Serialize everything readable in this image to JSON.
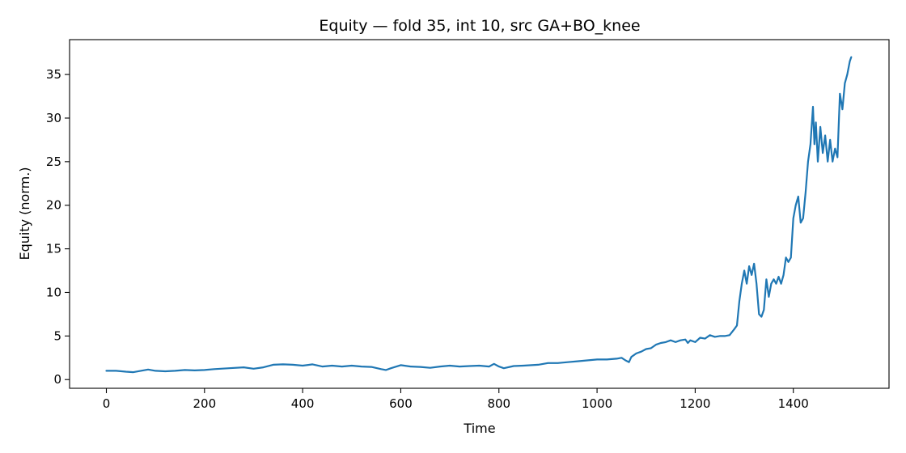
{
  "chart_data": {
    "type": "line",
    "title": "Equity — fold 35, int 10, src GA+BO_knee",
    "xlabel": "Time",
    "ylabel": "Equity (norm.)",
    "xlim": [
      -75,
      1595
    ],
    "ylim": [
      -1.0,
      39.0
    ],
    "xticks": [
      0,
      200,
      400,
      600,
      800,
      1000,
      1200,
      1400
    ],
    "yticks": [
      0,
      5,
      10,
      15,
      20,
      25,
      30,
      35
    ],
    "grid": false,
    "legend": "none",
    "series": [
      {
        "color": "#1f77b4",
        "points": [
          [
            0,
            1.0
          ],
          [
            20,
            1.0
          ],
          [
            40,
            0.9
          ],
          [
            55,
            0.85
          ],
          [
            70,
            1.0
          ],
          [
            85,
            1.15
          ],
          [
            100,
            1.0
          ],
          [
            120,
            0.95
          ],
          [
            140,
            1.0
          ],
          [
            160,
            1.1
          ],
          [
            180,
            1.05
          ],
          [
            200,
            1.1
          ],
          [
            220,
            1.2
          ],
          [
            250,
            1.3
          ],
          [
            280,
            1.4
          ],
          [
            300,
            1.25
          ],
          [
            320,
            1.4
          ],
          [
            340,
            1.7
          ],
          [
            360,
            1.75
          ],
          [
            380,
            1.7
          ],
          [
            400,
            1.6
          ],
          [
            420,
            1.75
          ],
          [
            440,
            1.5
          ],
          [
            460,
            1.6
          ],
          [
            480,
            1.5
          ],
          [
            500,
            1.6
          ],
          [
            520,
            1.5
          ],
          [
            540,
            1.45
          ],
          [
            560,
            1.2
          ],
          [
            570,
            1.1
          ],
          [
            580,
            1.3
          ],
          [
            600,
            1.65
          ],
          [
            620,
            1.5
          ],
          [
            640,
            1.45
          ],
          [
            660,
            1.35
          ],
          [
            680,
            1.5
          ],
          [
            700,
            1.6
          ],
          [
            720,
            1.5
          ],
          [
            740,
            1.55
          ],
          [
            760,
            1.6
          ],
          [
            780,
            1.5
          ],
          [
            790,
            1.8
          ],
          [
            800,
            1.5
          ],
          [
            810,
            1.3
          ],
          [
            830,
            1.55
          ],
          [
            850,
            1.6
          ],
          [
            880,
            1.7
          ],
          [
            900,
            1.9
          ],
          [
            920,
            1.9
          ],
          [
            940,
            2.0
          ],
          [
            960,
            2.1
          ],
          [
            980,
            2.2
          ],
          [
            1000,
            2.3
          ],
          [
            1020,
            2.3
          ],
          [
            1040,
            2.4
          ],
          [
            1050,
            2.5
          ],
          [
            1058,
            2.2
          ],
          [
            1065,
            2.0
          ],
          [
            1070,
            2.6
          ],
          [
            1080,
            3.0
          ],
          [
            1090,
            3.2
          ],
          [
            1100,
            3.5
          ],
          [
            1110,
            3.6
          ],
          [
            1120,
            4.0
          ],
          [
            1130,
            4.2
          ],
          [
            1140,
            4.3
          ],
          [
            1150,
            4.5
          ],
          [
            1160,
            4.3
          ],
          [
            1170,
            4.5
          ],
          [
            1180,
            4.6
          ],
          [
            1185,
            4.2
          ],
          [
            1190,
            4.5
          ],
          [
            1200,
            4.3
          ],
          [
            1210,
            4.8
          ],
          [
            1220,
            4.7
          ],
          [
            1230,
            5.1
          ],
          [
            1240,
            4.9
          ],
          [
            1250,
            5.0
          ],
          [
            1260,
            5.0
          ],
          [
            1270,
            5.1
          ],
          [
            1280,
            5.8
          ],
          [
            1285,
            6.2
          ],
          [
            1290,
            9.0
          ],
          [
            1295,
            11.0
          ],
          [
            1300,
            12.5
          ],
          [
            1305,
            11.0
          ],
          [
            1310,
            13.0
          ],
          [
            1315,
            12.0
          ],
          [
            1320,
            13.3
          ],
          [
            1325,
            11.0
          ],
          [
            1330,
            7.5
          ],
          [
            1335,
            7.2
          ],
          [
            1340,
            8.0
          ],
          [
            1345,
            11.5
          ],
          [
            1350,
            9.5
          ],
          [
            1355,
            11.0
          ],
          [
            1360,
            11.5
          ],
          [
            1365,
            11.0
          ],
          [
            1370,
            11.8
          ],
          [
            1375,
            11.0
          ],
          [
            1380,
            12.0
          ],
          [
            1385,
            14.0
          ],
          [
            1390,
            13.5
          ],
          [
            1395,
            14.0
          ],
          [
            1400,
            18.5
          ],
          [
            1405,
            20.0
          ],
          [
            1410,
            21.0
          ],
          [
            1415,
            18.0
          ],
          [
            1420,
            18.5
          ],
          [
            1425,
            21.5
          ],
          [
            1430,
            25.0
          ],
          [
            1435,
            27.0
          ],
          [
            1440,
            31.3
          ],
          [
            1443,
            27.0
          ],
          [
            1446,
            29.5
          ],
          [
            1450,
            25.0
          ],
          [
            1455,
            29.0
          ],
          [
            1460,
            26.0
          ],
          [
            1465,
            28.0
          ],
          [
            1470,
            25.0
          ],
          [
            1475,
            27.5
          ],
          [
            1480,
            25.0
          ],
          [
            1485,
            26.5
          ],
          [
            1490,
            25.5
          ],
          [
            1495,
            32.8
          ],
          [
            1500,
            31.0
          ],
          [
            1505,
            34.0
          ],
          [
            1510,
            35.0
          ],
          [
            1515,
            36.5
          ],
          [
            1518,
            37.0
          ]
        ]
      }
    ]
  }
}
